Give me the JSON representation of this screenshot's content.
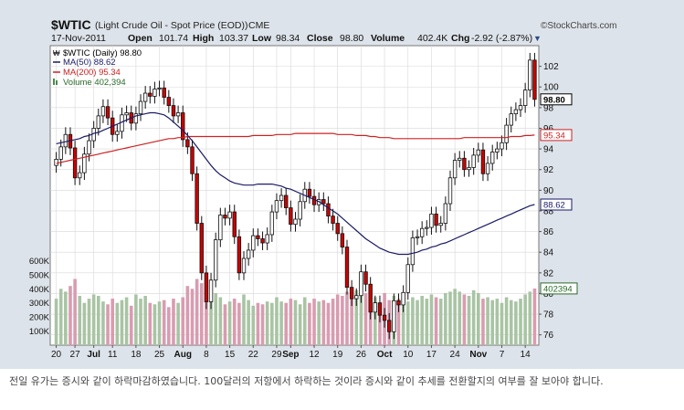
{
  "header": {
    "symbol": "$WTIC",
    "description": "(Light Crude Oil - Spot Price (EOD))",
    "exchange": "CME",
    "brand": "©StockCharts.com",
    "date": "17-Nov-2011",
    "open_label": "Open",
    "open": "101.74",
    "high_label": "High",
    "high": "103.37",
    "low_label": "Low",
    "low": "98.34",
    "close_label": "Close",
    "close": "98.80",
    "volume_label": "Volume",
    "volume": "402.4K",
    "chg_label": "Chg",
    "chg": "-2.92 (-2.87%)",
    "chg_arrow": "▼"
  },
  "legend": {
    "price": "$WTIC (Daily) 98.80",
    "ma50": "MA(50) 88.62",
    "ma200": "MA(200) 95.34",
    "volume": "Volume 402,394"
  },
  "badges": {
    "close": "98.80",
    "ma200": "95.34",
    "ma50": "88.62",
    "volume": "402394"
  },
  "caption": "전일 유가는 증시와 같이 하락마감하였습니다. 100달러의 저항에서 하락하는 것이라 증시와 같이 추세를 전환할지의 여부를 잘 보아야 합니다.",
  "colors": {
    "frame_bg": "#dde3ea",
    "plot_bg": "#ffffff",
    "up_candle": "#ffffff",
    "down_candle": "#cc0000",
    "ma50": "#1a1a66",
    "ma200": "#cc2222",
    "volume_up": "#a9c4a4",
    "volume_down": "#d89cb0",
    "grid": "#d8d8d8",
    "chg_down": "#cc0000"
  },
  "chart_data": {
    "type": "candlestick",
    "price_ylim": [
      75,
      104
    ],
    "price_yticks": [
      76,
      78,
      80,
      82,
      84,
      86,
      88,
      90,
      92,
      94,
      96,
      98,
      100,
      102
    ],
    "volume_ylim": [
      0,
      700000
    ],
    "volume_yticks": [
      {
        "v": 100000,
        "label": "100K"
      },
      {
        "v": 200000,
        "label": "200K"
      },
      {
        "v": 300000,
        "label": "300K"
      },
      {
        "v": 400000,
        "label": "400K"
      },
      {
        "v": 500000,
        "label": "500K"
      },
      {
        "v": 600000,
        "label": "600K"
      }
    ],
    "x_ticks": [
      {
        "i": 0,
        "label": "20",
        "bold": false
      },
      {
        "i": 4,
        "label": "27",
        "bold": false
      },
      {
        "i": 8,
        "label": "Jul",
        "bold": true
      },
      {
        "i": 12,
        "label": "11",
        "bold": false
      },
      {
        "i": 17,
        "label": "18",
        "bold": false
      },
      {
        "i": 22,
        "label": "25",
        "bold": false
      },
      {
        "i": 27,
        "label": "Aug",
        "bold": true
      },
      {
        "i": 32,
        "label": "8",
        "bold": false
      },
      {
        "i": 37,
        "label": "15",
        "bold": false
      },
      {
        "i": 42,
        "label": "22",
        "bold": false
      },
      {
        "i": 47,
        "label": "29",
        "bold": false
      },
      {
        "i": 50,
        "label": "Sep",
        "bold": true
      },
      {
        "i": 55,
        "label": "12",
        "bold": false
      },
      {
        "i": 60,
        "label": "19",
        "bold": false
      },
      {
        "i": 65,
        "label": "26",
        "bold": false
      },
      {
        "i": 70,
        "label": "Oct",
        "bold": true
      },
      {
        "i": 75,
        "label": "10",
        "bold": false
      },
      {
        "i": 80,
        "label": "17",
        "bold": false
      },
      {
        "i": 85,
        "label": "24",
        "bold": false
      },
      {
        "i": 90,
        "label": "Nov",
        "bold": true
      },
      {
        "i": 95,
        "label": "7",
        "bold": false
      },
      {
        "i": 100,
        "label": "14",
        "bold": false
      }
    ],
    "close": [
      93.0,
      94.2,
      95.4,
      94.1,
      91.2,
      91.7,
      93.5,
      94.8,
      96.0,
      97.2,
      98.1,
      97.0,
      95.4,
      95.7,
      97.3,
      97.5,
      96.5,
      97.4,
      98.6,
      99.4,
      99.1,
      99.8,
      99.9,
      99.0,
      98.2,
      97.2,
      97.5,
      94.9,
      94.2,
      91.6,
      86.8,
      82.0,
      79.2,
      81.3,
      85.2,
      87.6,
      87.3,
      87.9,
      85.5,
      82.0,
      83.4,
      84.2,
      85.6,
      85.3,
      84.9,
      85.7,
      87.9,
      89.0,
      89.5,
      88.3,
      86.7,
      87.2,
      88.9,
      90.1,
      89.4,
      88.6,
      89.1,
      88.7,
      87.5,
      86.8,
      85.8,
      84.5,
      80.6,
      79.5,
      79.8,
      82.1,
      80.9,
      78.2,
      79.1,
      77.9,
      77.4,
      76.3,
      79.3,
      78.9,
      80.1,
      82.8,
      85.4,
      85.5,
      86.3,
      86.4,
      87.7,
      86.6,
      86.8,
      88.7,
      91.2,
      92.9,
      93.1,
      92.0,
      92.2,
      93.4,
      93.9,
      91.6,
      92.6,
      93.7,
      94.0,
      94.6,
      96.3,
      97.4,
      97.8,
      98.2,
      99.7,
      102.6,
      98.8
    ],
    "ma50": [
      94.5,
      94.6,
      94.7,
      94.8,
      94.9,
      95.0,
      95.2,
      95.3,
      95.5,
      95.6,
      95.8,
      96.0,
      96.2,
      96.4,
      96.6,
      96.8,
      97.0,
      97.2,
      97.3,
      97.4,
      97.5,
      97.5,
      97.4,
      97.3,
      97.0,
      96.6,
      96.2,
      95.8,
      95.3,
      94.8,
      94.2,
      93.6,
      93.0,
      92.4,
      91.9,
      91.5,
      91.2,
      90.9,
      90.7,
      90.6,
      90.5,
      90.5,
      90.5,
      90.6,
      90.6,
      90.6,
      90.6,
      90.5,
      90.4,
      90.2,
      90.1,
      89.9,
      89.7,
      89.5,
      89.3,
      89.1,
      88.9,
      88.6,
      88.3,
      88.0,
      87.7,
      87.3,
      86.9,
      86.5,
      86.1,
      85.7,
      85.3,
      85.0,
      84.7,
      84.4,
      84.2,
      84.0,
      83.9,
      83.8,
      83.8,
      83.8,
      83.9,
      84.0,
      84.2,
      84.3,
      84.5,
      84.6,
      84.8,
      84.9,
      85.1,
      85.3,
      85.5,
      85.7,
      85.9,
      86.1,
      86.3,
      86.5,
      86.7,
      86.9,
      87.1,
      87.3,
      87.5,
      87.7,
      87.9,
      88.1,
      88.3,
      88.5,
      88.62
    ],
    "ma200": [
      92.6,
      92.7,
      92.8,
      92.9,
      93.0,
      93.1,
      93.2,
      93.3,
      93.4,
      93.5,
      93.6,
      93.7,
      93.8,
      93.9,
      94.0,
      94.1,
      94.2,
      94.3,
      94.4,
      94.5,
      94.6,
      94.7,
      94.8,
      94.9,
      95.0,
      95.0,
      95.1,
      95.1,
      95.2,
      95.2,
      95.2,
      95.2,
      95.2,
      95.2,
      95.2,
      95.2,
      95.2,
      95.2,
      95.2,
      95.2,
      95.2,
      95.2,
      95.3,
      95.3,
      95.3,
      95.3,
      95.3,
      95.4,
      95.4,
      95.4,
      95.4,
      95.5,
      95.5,
      95.5,
      95.5,
      95.5,
      95.5,
      95.5,
      95.5,
      95.5,
      95.4,
      95.4,
      95.4,
      95.4,
      95.3,
      95.3,
      95.3,
      95.2,
      95.2,
      95.1,
      95.1,
      95.1,
      95.0,
      95.0,
      95.0,
      95.0,
      95.0,
      95.0,
      95.0,
      95.0,
      95.0,
      95.0,
      95.0,
      95.0,
      95.0,
      95.0,
      95.0,
      95.1,
      95.1,
      95.1,
      95.1,
      95.1,
      95.1,
      95.1,
      95.1,
      95.1,
      95.1,
      95.2,
      95.2,
      95.2,
      95.3,
      95.3,
      95.34
    ],
    "volume": [
      330000,
      400000,
      380000,
      420000,
      470000,
      350000,
      300000,
      330000,
      360000,
      350000,
      310000,
      290000,
      330000,
      300000,
      320000,
      340000,
      280000,
      360000,
      330000,
      350000,
      300000,
      290000,
      310000,
      320000,
      270000,
      330000,
      300000,
      340000,
      420000,
      400000,
      470000,
      440000,
      480000,
      420000,
      370000,
      340000,
      290000,
      310000,
      330000,
      300000,
      360000,
      320000,
      280000,
      300000,
      290000,
      310000,
      300000,
      340000,
      310000,
      300000,
      330000,
      320000,
      290000,
      340000,
      300000,
      330000,
      310000,
      320000,
      300000,
      330000,
      360000,
      350000,
      380000,
      360000,
      390000,
      400000,
      370000,
      330000,
      340000,
      300000,
      370000,
      320000,
      350000,
      330000,
      300000,
      310000,
      340000,
      320000,
      350000,
      330000,
      360000,
      340000,
      330000,
      370000,
      380000,
      400000,
      380000,
      360000,
      350000,
      390000,
      370000,
      330000,
      340000,
      320000,
      330000,
      300000,
      340000,
      320000,
      310000,
      330000,
      360000,
      380000,
      402394
    ]
  }
}
